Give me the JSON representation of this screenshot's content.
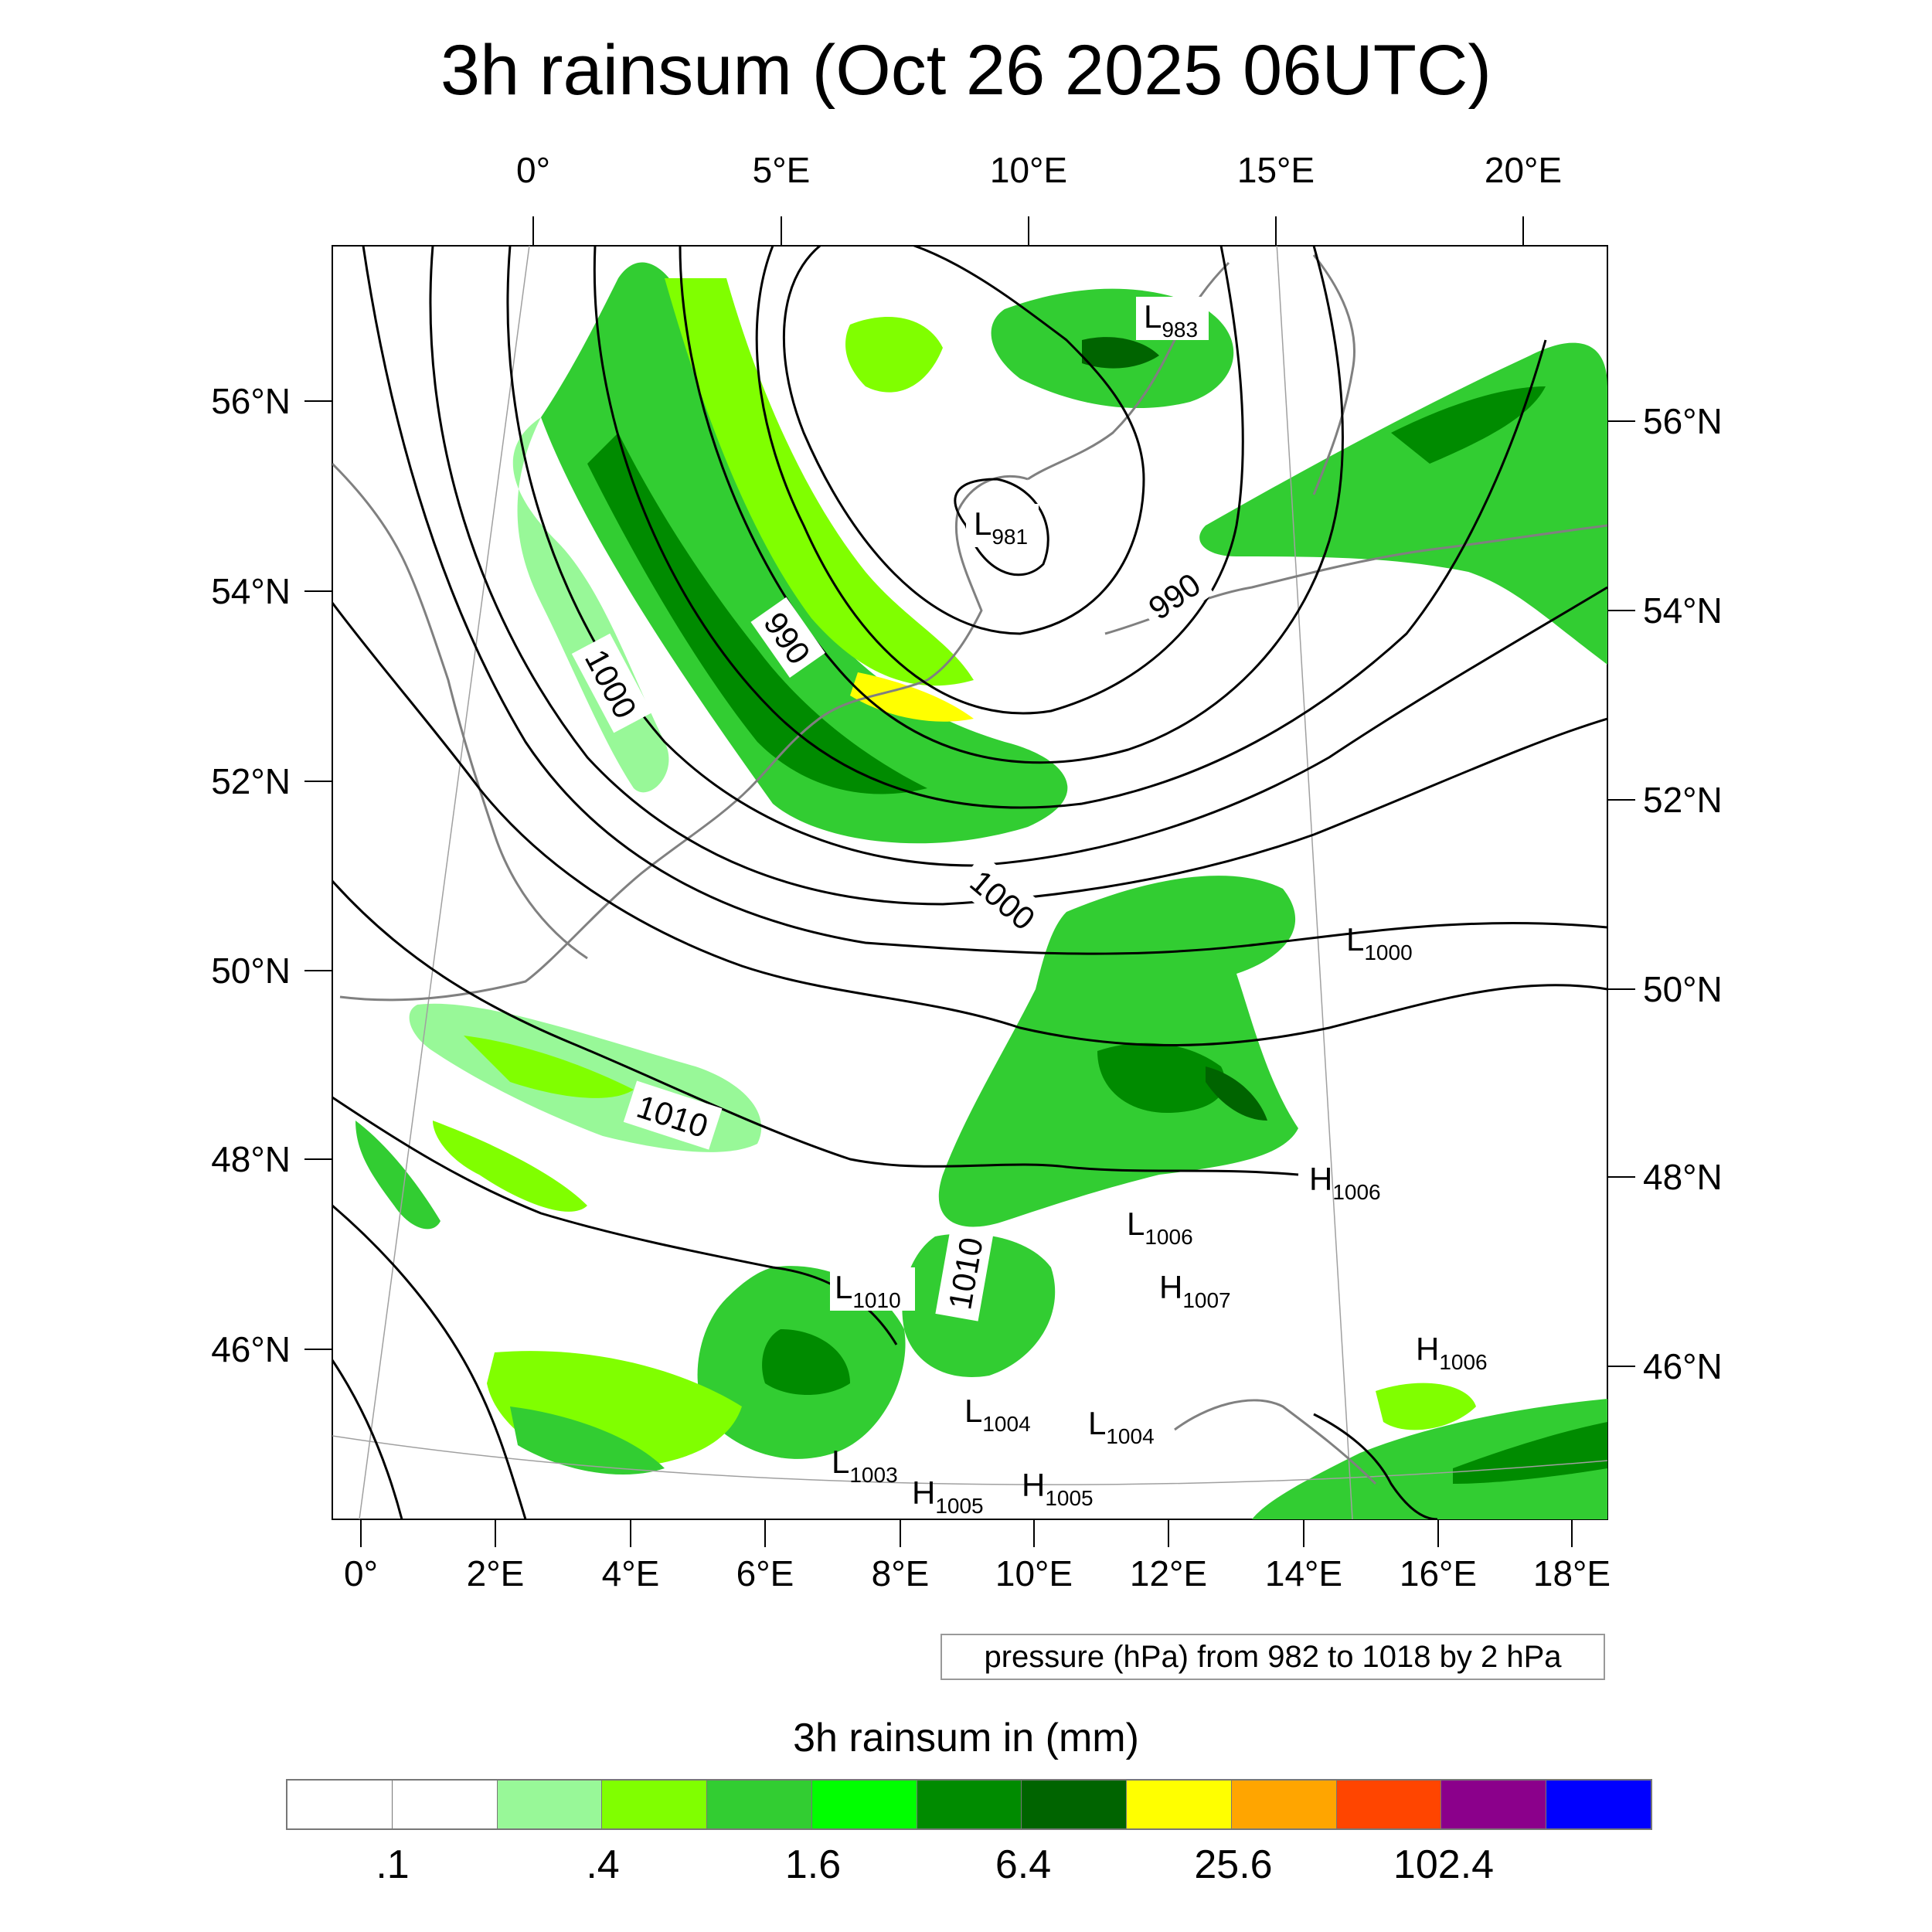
{
  "title": "3h rainsum (Oct 26 2025 06UTC)",
  "top_lon_labels": [
    "0°",
    "5°E",
    "10°E",
    "15°E",
    "20°E"
  ],
  "left_lat_labels": [
    "56°N",
    "54°N",
    "52°N",
    "50°N",
    "48°N",
    "46°N"
  ],
  "right_lat_labels": [
    "56°N",
    "54°N",
    "52°N",
    "50°N",
    "48°N",
    "46°N"
  ],
  "bottom_lon_labels": [
    "0°",
    "2°E",
    "4°E",
    "6°E",
    "8°E",
    "10°E",
    "12°E",
    "14°E",
    "16°E",
    "18°E"
  ],
  "contour_labels": [
    "1000",
    "990",
    "990",
    "1000",
    "1010",
    "1010"
  ],
  "pressure_centers": [
    {
      "letter": "L",
      "value": "983"
    },
    {
      "letter": "L",
      "value": "981"
    },
    {
      "letter": "L",
      "value": "1000"
    },
    {
      "letter": "H",
      "value": "1006"
    },
    {
      "letter": "L",
      "value": "1006"
    },
    {
      "letter": "L",
      "value": "1010"
    },
    {
      "letter": "H",
      "value": "1007"
    },
    {
      "letter": "H",
      "value": "1006"
    },
    {
      "letter": "L",
      "value": "1004"
    },
    {
      "letter": "L",
      "value": "1004"
    },
    {
      "letter": "L",
      "value": "1003"
    },
    {
      "letter": "H",
      "value": "1005"
    },
    {
      "letter": "H",
      "value": "1005"
    }
  ],
  "info_text": "pressure (hPa) from 982 to 1018 by 2 hPa",
  "legend_title": "3h rainsum in (mm)",
  "colorbar": {
    "colors": [
      "#ffffff",
      "#ffffff",
      "#98f898",
      "#80ff00",
      "#32cd32",
      "#00ff00",
      "#008b00",
      "#006400",
      "#ffff00",
      "#ffa500",
      "#ff4500",
      "#8b008b",
      "#0000ff"
    ],
    "labels": [
      ".1",
      ".4",
      "1.6",
      "6.4",
      "25.6",
      "102.4"
    ]
  },
  "colors": {
    "contour": "#000000",
    "coastline": "#808080",
    "grid": "#a0a0a0"
  }
}
